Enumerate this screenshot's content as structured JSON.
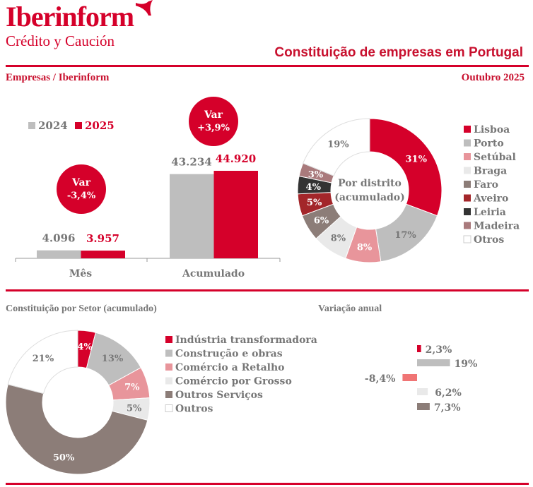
{
  "header": {
    "logo_text": "Iberinform",
    "logo_sub": "Crédito y Caución",
    "title": "Constituição de empresas em Portugal",
    "subtitle": "Empresas / Iberinform",
    "date": "Outubro 2025"
  },
  "colors": {
    "accent": "#D5002A",
    "gray": "#BEBEBE",
    "text_gray": "#777777"
  },
  "chart_data": [
    {
      "type": "bar",
      "categories": [
        "Mês",
        "Acumulado"
      ],
      "series": [
        {
          "name": "2024",
          "values": [
            4096,
            43234
          ],
          "labels": [
            "4.096",
            "43.234"
          ],
          "color": "#BEBEBE"
        },
        {
          "name": "2025",
          "values": [
            3957,
            44920
          ],
          "labels": [
            "3.957",
            "44.920"
          ],
          "color": "#D5002A"
        }
      ],
      "annotations": [
        {
          "category": "Mês",
          "line1": "Var",
          "line2": "-3,4%"
        },
        {
          "category": "Acumulado",
          "line1": "Var",
          "line2": "+3,9%"
        }
      ],
      "legend": "top-left",
      "ylim": [
        0,
        45000
      ]
    },
    {
      "type": "pie",
      "donut": true,
      "center_label": [
        "Por distrito",
        "(acumulado)"
      ],
      "categories": [
        "Lisboa",
        "Porto",
        "Setúbal",
        "Braga",
        "Faro",
        "Aveiro",
        "Leiria",
        "Madeira",
        "Otros"
      ],
      "values": [
        31,
        17,
        8,
        8,
        6,
        5,
        4,
        3,
        19
      ],
      "colors": [
        "#D5002A",
        "#BEBEBE",
        "#E8959B",
        "#E9E9E9",
        "#8C7D78",
        "#A3262A",
        "#333333",
        "#A97A7C",
        "#FFFFFF"
      ],
      "legend": "right"
    },
    {
      "type": "pie",
      "donut": true,
      "title": "Constituição por Setor (acumulado)",
      "categories": [
        "Indústria transformadora",
        "Construção e obras",
        "Comércio a Retalho",
        "Comércio por Grosso",
        "Outros Serviços",
        "Outros"
      ],
      "values": [
        4,
        13,
        7,
        5,
        50,
        21
      ],
      "colors": [
        "#D5002A",
        "#BEBEBE",
        "#E8959B",
        "#E9E9E9",
        "#8C7D78",
        "#FFFFFF"
      ],
      "legend": "right"
    },
    {
      "type": "bar",
      "orientation": "horizontal",
      "title": "Variação anual",
      "values": [
        2.3,
        19,
        -8.4,
        6.2,
        7.3
      ],
      "labels": [
        "2,3%",
        "19%",
        "-8,4%",
        "6,2%",
        "7,3%"
      ],
      "colors": [
        "#D5002A",
        "#BEBEBE",
        "#F07575",
        "#E9E9E9",
        "#8C7D78"
      ]
    }
  ]
}
